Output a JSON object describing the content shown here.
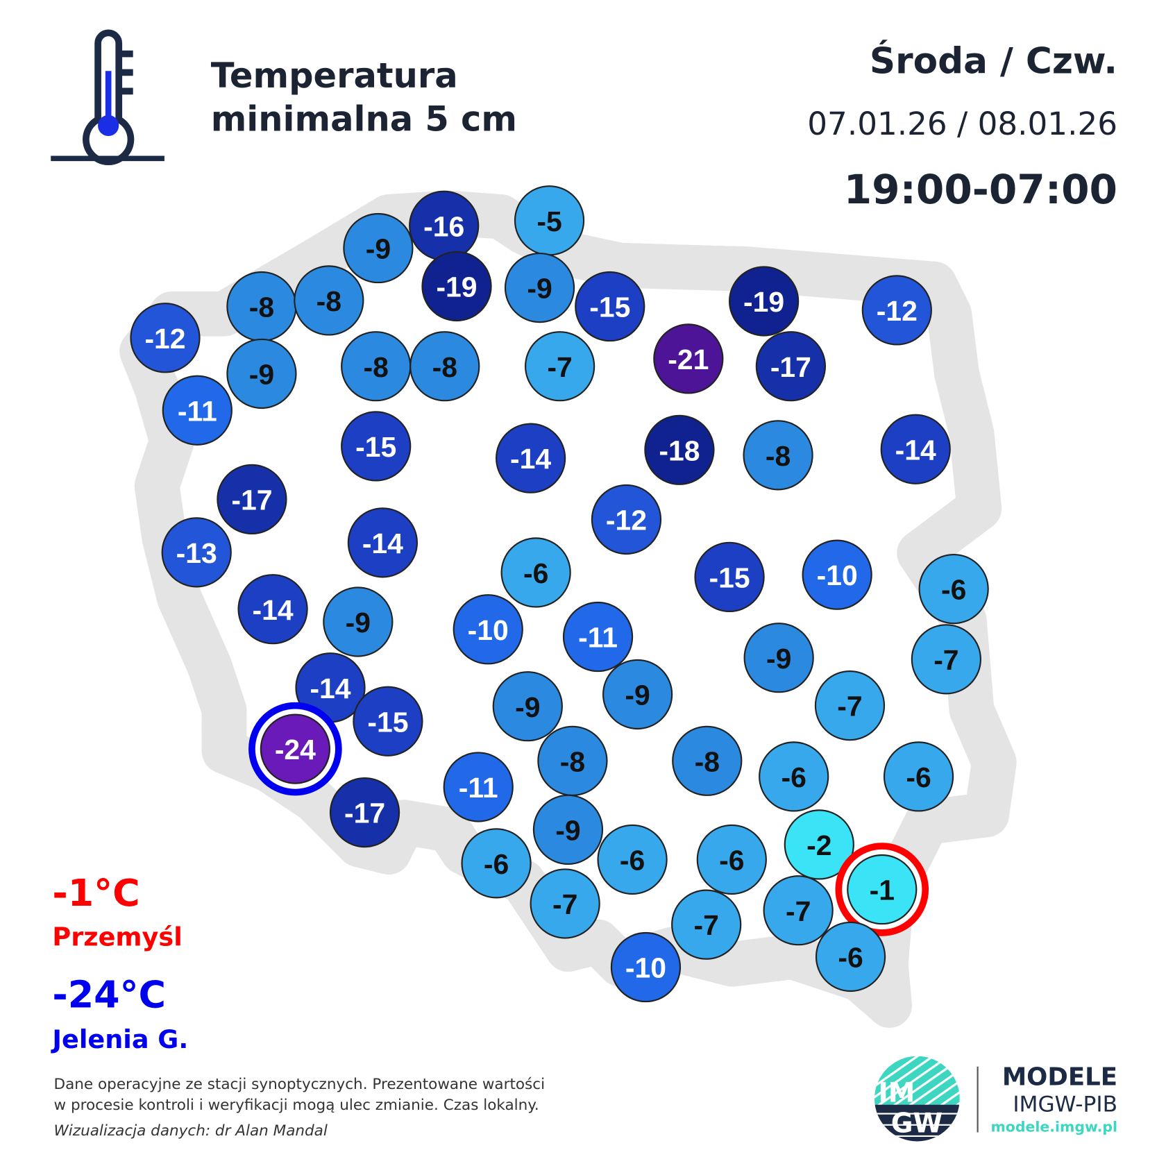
{
  "header": {
    "title_line1": "Temperatura",
    "title_line2": "minimalna 5 cm",
    "days": "Środa / Czw.",
    "dates": "07.01.26 / 08.01.26",
    "hours": "19:00-07:00",
    "icon": "thermometer-icon"
  },
  "extremes": {
    "max_value": "-1°C",
    "max_station": "Przemyśl",
    "max_color": "#ff0000",
    "min_value": "-24°C",
    "min_station": "Jelenia G.",
    "min_color": "#0000ee"
  },
  "stations": [
    -16,
    -5,
    -9,
    -19,
    -9,
    -15,
    -8,
    -8,
    -12,
    -19,
    -12,
    -9,
    -8,
    -8,
    -7,
    -21,
    -17,
    -11,
    -15,
    -14,
    -18,
    -8,
    -14,
    -17,
    -12,
    -13,
    -14,
    -6,
    -15,
    -10,
    -6,
    -14,
    -9,
    -10,
    -11,
    -9,
    -7,
    -14,
    -15,
    -9,
    -9,
    -7,
    -24,
    -17,
    -11,
    -8,
    -8,
    -6,
    -6,
    -9,
    -6,
    -6,
    -6,
    -2,
    -1,
    -7,
    -7,
    -7,
    -6,
    -10
  ],
  "footer": {
    "note_line1": "Dane operacyjne ze stacji synoptycznych. Prezentowane wartości",
    "note_line2": "w procesie kontroli i weryfikacji mogą ulec zmianie. Czas lokalny.",
    "credit": "Wizualizacja danych: dr Alan Mandal"
  },
  "logo": {
    "mark": "IMGW",
    "name": "MODELE",
    "org": "IMGW-PIB",
    "url": "modele.imgw.pl",
    "accent": "#3dd6c0",
    "navy": "#1c2a45"
  }
}
